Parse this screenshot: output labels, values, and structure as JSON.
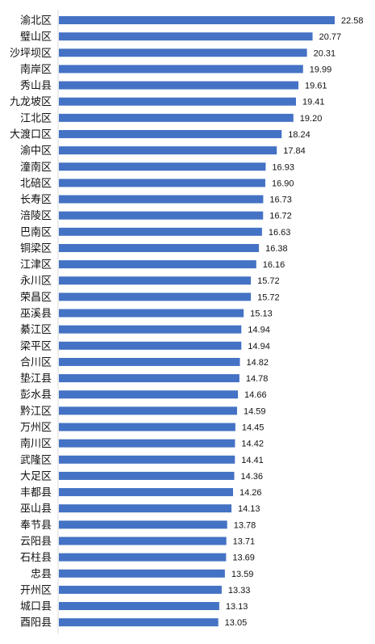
{
  "chart_data": {
    "type": "bar",
    "orientation": "horizontal",
    "title": "",
    "xlabel": "",
    "ylabel": "",
    "categories": [
      "渝北区",
      "璧山区",
      "沙坪坝区",
      "南岸区",
      "秀山县",
      "九龙坡区",
      "江北区",
      "大渡口区",
      "渝中区",
      "潼南区",
      "北碚区",
      "长寿区",
      "涪陵区",
      "巴南区",
      "铜梁区",
      "江津区",
      "永川区",
      "荣昌区",
      "巫溪县",
      "綦江区",
      "梁平区",
      "合川区",
      "垫江县",
      "彭水县",
      "黔江区",
      "万州区",
      "南川区",
      "武隆区",
      "大足区",
      "丰都县",
      "巫山县",
      "奉节县",
      "云阳县",
      "石柱县",
      "忠县",
      "开州区",
      "城口县",
      "酉阳县"
    ],
    "values": [
      22.58,
      20.77,
      20.31,
      19.99,
      19.61,
      19.41,
      19.2,
      18.24,
      17.84,
      16.93,
      16.9,
      16.73,
      16.72,
      16.63,
      16.38,
      16.16,
      15.72,
      15.72,
      15.13,
      14.94,
      14.94,
      14.82,
      14.78,
      14.66,
      14.59,
      14.45,
      14.42,
      14.41,
      14.36,
      14.26,
      14.13,
      13.78,
      13.71,
      13.69,
      13.59,
      13.33,
      13.13,
      13.05
    ],
    "value_labels": [
      "22.58",
      "20.77",
      "20.31",
      "19.99",
      "19.61",
      "19.41",
      "19.20",
      "18.24",
      "17.84",
      "16.93",
      "16.90",
      "16.73",
      "16.72",
      "16.63",
      "16.38",
      "16.16",
      "15.72",
      "15.72",
      "15.13",
      "14.94",
      "14.94",
      "14.82",
      "14.78",
      "14.66",
      "14.59",
      "14.45",
      "14.42",
      "14.41",
      "14.36",
      "14.26",
      "14.13",
      "13.78",
      "13.71",
      "13.69",
      "13.59",
      "13.33",
      "13.13",
      "13.05"
    ],
    "xlim": [
      0,
      22.58
    ],
    "grid": false,
    "legend": "none",
    "bar_color": "#4472C4",
    "axis_color": "#D9D9D9"
  }
}
